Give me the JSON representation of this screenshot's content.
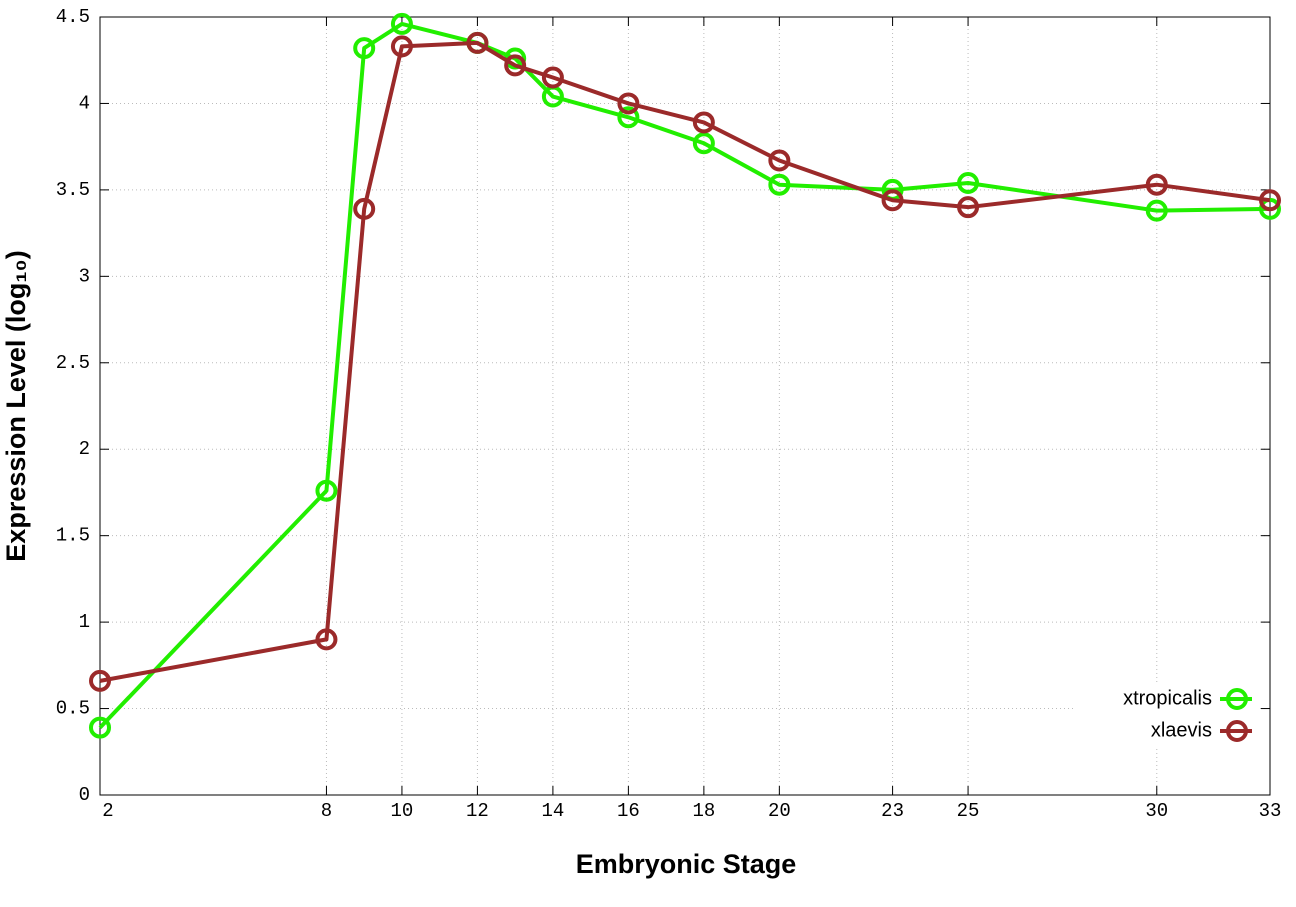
{
  "chart_data": {
    "type": "line",
    "x_label": "Embryonic Stage",
    "y_label": "Expression Level (log₁₀)",
    "x": [
      2,
      8,
      9,
      10,
      12,
      13,
      14,
      16,
      18,
      20,
      23,
      25,
      30,
      33
    ],
    "series": [
      {
        "name": "xtropicalis",
        "color": "#22ee00",
        "values": [
          0.39,
          1.76,
          4.32,
          4.46,
          4.35,
          4.26,
          4.04,
          3.92,
          3.77,
          3.53,
          3.5,
          3.54,
          3.38,
          3.39
        ]
      },
      {
        "name": "xlaevis",
        "color": "#9b2a2a",
        "values": [
          0.66,
          0.9,
          3.39,
          4.33,
          4.35,
          4.22,
          4.15,
          4.0,
          3.89,
          3.67,
          3.44,
          3.4,
          3.53,
          3.44
        ]
      }
    ],
    "xlim": [
      2,
      33
    ],
    "xticks": [
      2,
      8,
      10,
      12,
      14,
      16,
      18,
      20,
      23,
      25,
      30,
      33
    ],
    "ylim": [
      0,
      4.5
    ],
    "yticks": [
      0,
      0.5,
      1,
      1.5,
      2,
      2.5,
      3,
      3.5,
      4,
      4.5
    ],
    "grid": true,
    "legend": "lower-right"
  }
}
